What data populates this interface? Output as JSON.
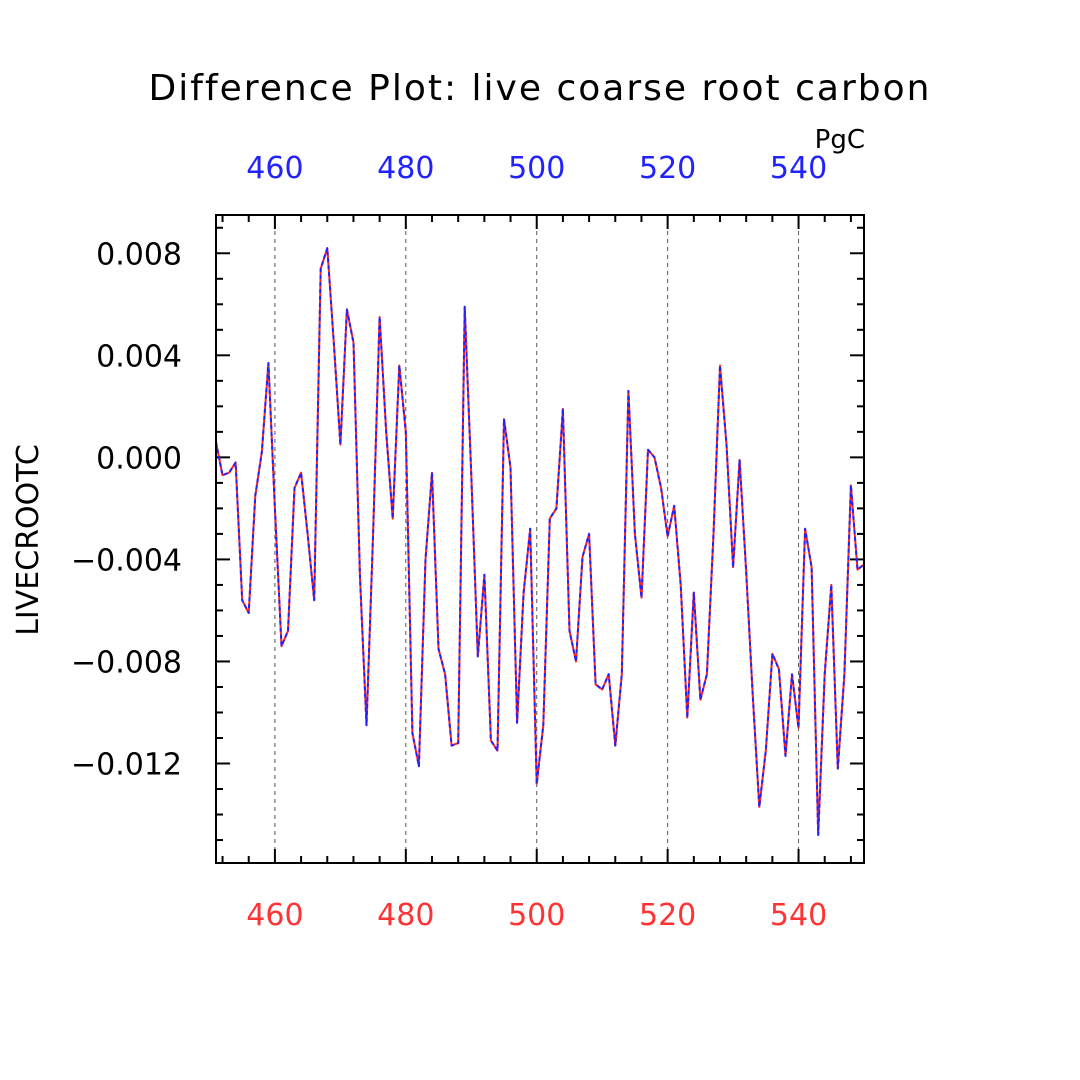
{
  "chart_data": {
    "type": "line",
    "title": "Difference Plot: live coarse root carbon",
    "units": "PgC",
    "ylabel": "LIVECROOTC",
    "xlabel": "",
    "xlim": [
      451,
      550
    ],
    "ylim": [
      -0.0159,
      0.0095
    ],
    "grid": "x-dashed",
    "x_ticks": [
      460,
      480,
      500,
      520,
      540
    ],
    "x_tick_labels": [
      "460",
      "480",
      "500",
      "520",
      "540"
    ],
    "y_ticks": [
      0.008,
      0.004,
      0.0,
      -0.004,
      -0.008,
      -0.012
    ],
    "y_tick_labels": [
      "0.008",
      "0.004",
      "0.000",
      "−0.004",
      "−0.008",
      "−0.012"
    ],
    "top_axis_color": "#2222ff",
    "bottom_axis_color": "#ff3333",
    "series": [
      {
        "line_color": "#ff2222",
        "style": "solid",
        "x": [
          451,
          452,
          453,
          454,
          455,
          456,
          457,
          458,
          459,
          460,
          461,
          462,
          463,
          464,
          465,
          466,
          467,
          468,
          469,
          470,
          471,
          472,
          473,
          474,
          475,
          476,
          477,
          478,
          479,
          480,
          481,
          482,
          483,
          484,
          485,
          486,
          487,
          488,
          489,
          490,
          491,
          492,
          493,
          494,
          495,
          496,
          497,
          498,
          499,
          500,
          501,
          502,
          503,
          504,
          505,
          506,
          507,
          508,
          509,
          510,
          511,
          512,
          513,
          514,
          515,
          516,
          517,
          518,
          519,
          520,
          521,
          522,
          523,
          524,
          525,
          526,
          527,
          528,
          529,
          530,
          531,
          532,
          533,
          534,
          535,
          536,
          537,
          538,
          539,
          540,
          541,
          542,
          543,
          544,
          545,
          546,
          547,
          548,
          549,
          550
        ],
        "y": [
          0.0006,
          -0.0007,
          -0.0006,
          -0.0002,
          -0.0056,
          -0.0061,
          -0.0015,
          0.0002,
          0.0037,
          -0.002,
          -0.0074,
          -0.0068,
          -0.0012,
          -0.0006,
          -0.003,
          -0.0056,
          0.0074,
          0.0082,
          0.0045,
          0.0005,
          0.0058,
          0.0045,
          -0.0047,
          -0.0105,
          -0.003,
          0.0055,
          0.001,
          -0.0024,
          0.0036,
          0.001,
          -0.0108,
          -0.0121,
          -0.004,
          -0.0006,
          -0.0075,
          -0.0085,
          -0.0113,
          -0.0112,
          0.0059,
          -0.0007,
          -0.0078,
          -0.0046,
          -0.0111,
          -0.0115,
          0.0015,
          -0.0004,
          -0.0104,
          -0.0053,
          -0.0028,
          -0.0128,
          -0.0105,
          -0.0024,
          -0.002,
          0.0019,
          -0.0068,
          -0.008,
          -0.0039,
          -0.003,
          -0.0089,
          -0.0091,
          -0.0085,
          -0.0113,
          -0.0085,
          0.0026,
          -0.003,
          -0.0055,
          0.0003,
          0.0,
          -0.0012,
          -0.0031,
          -0.0019,
          -0.005,
          -0.0102,
          -0.0053,
          -0.0095,
          -0.0085,
          -0.003,
          0.0036,
          0.0005,
          -0.0043,
          -0.0001,
          -0.0045,
          -0.0093,
          -0.0137,
          -0.0115,
          -0.0077,
          -0.0083,
          -0.0117,
          -0.0085,
          -0.0106,
          -0.0028,
          -0.0043,
          -0.0148,
          -0.0085,
          -0.005,
          -0.0122,
          -0.0085,
          -0.0011,
          -0.0044,
          -0.0042
        ]
      },
      {
        "line_color": "#2222ff",
        "style": "dashed",
        "x": [
          451,
          452,
          453,
          454,
          455,
          456,
          457,
          458,
          459,
          460,
          461,
          462,
          463,
          464,
          465,
          466,
          467,
          468,
          469,
          470,
          471,
          472,
          473,
          474,
          475,
          476,
          477,
          478,
          479,
          480,
          481,
          482,
          483,
          484,
          485,
          486,
          487,
          488,
          489,
          490,
          491,
          492,
          493,
          494,
          495,
          496,
          497,
          498,
          499,
          500,
          501,
          502,
          503,
          504,
          505,
          506,
          507,
          508,
          509,
          510,
          511,
          512,
          513,
          514,
          515,
          516,
          517,
          518,
          519,
          520,
          521,
          522,
          523,
          524,
          525,
          526,
          527,
          528,
          529,
          530,
          531,
          532,
          533,
          534,
          535,
          536,
          537,
          538,
          539,
          540,
          541,
          542,
          543,
          544,
          545,
          546,
          547,
          548,
          549,
          550
        ],
        "y": [
          0.0006,
          -0.0007,
          -0.0006,
          -0.0002,
          -0.0056,
          -0.0061,
          -0.0015,
          0.0002,
          0.0037,
          -0.002,
          -0.0074,
          -0.0068,
          -0.0012,
          -0.0006,
          -0.003,
          -0.0056,
          0.0074,
          0.0082,
          0.0045,
          0.0005,
          0.0058,
          0.0045,
          -0.0047,
          -0.0105,
          -0.003,
          0.0055,
          0.001,
          -0.0024,
          0.0036,
          0.001,
          -0.0108,
          -0.0121,
          -0.004,
          -0.0006,
          -0.0075,
          -0.0085,
          -0.0113,
          -0.0112,
          0.0059,
          -0.0007,
          -0.0078,
          -0.0046,
          -0.0111,
          -0.0115,
          0.0015,
          -0.0004,
          -0.0104,
          -0.0053,
          -0.0028,
          -0.0128,
          -0.0105,
          -0.0024,
          -0.002,
          0.0019,
          -0.0068,
          -0.008,
          -0.0039,
          -0.003,
          -0.0089,
          -0.0091,
          -0.0085,
          -0.0113,
          -0.0085,
          0.0026,
          -0.003,
          -0.0055,
          0.0003,
          0.0,
          -0.0012,
          -0.0031,
          -0.0019,
          -0.005,
          -0.0102,
          -0.0053,
          -0.0095,
          -0.0085,
          -0.003,
          0.0036,
          0.0005,
          -0.0043,
          -0.0001,
          -0.0045,
          -0.0093,
          -0.0137,
          -0.0115,
          -0.0077,
          -0.0083,
          -0.0117,
          -0.0085,
          -0.0106,
          -0.0028,
          -0.0043,
          -0.0148,
          -0.0085,
          -0.005,
          -0.0122,
          -0.0085,
          -0.0011,
          -0.0044,
          -0.0042
        ]
      }
    ]
  }
}
